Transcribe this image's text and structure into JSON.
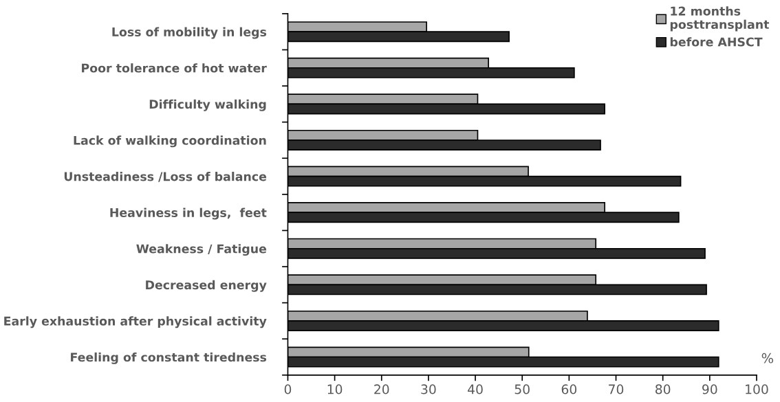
{
  "chart_data": {
    "type": "bar",
    "orientation": "horizontal",
    "categories": [
      "Loss of mobility in legs",
      "Poor tolerance of hot water",
      "Difficulty walking",
      "Lack of walking coordination",
      "Unsteadiness /Loss of balance",
      "Heaviness in legs,  feet",
      "Weakness / Fatigue",
      "Decreased energy",
      "Early exhaustion after physical activity",
      "Feeling of constant tiredness"
    ],
    "series": [
      {
        "name": "12 months\nposttransplant",
        "color": "#a6a6a6",
        "values": [
          29.6,
          42.8,
          40.5,
          40.5,
          51.3,
          67.6,
          65.7,
          65.7,
          63.9,
          51.4
        ]
      },
      {
        "name": "before AHSCT",
        "color": "#2b2b2b",
        "values": [
          47.2,
          61.1,
          67.6,
          66.7,
          83.8,
          83.4,
          89.0,
          89.3,
          91.9,
          91.9
        ]
      }
    ],
    "xlim": [
      0,
      100
    ],
    "xticks": [
      0,
      10,
      20,
      30,
      40,
      50,
      60,
      70,
      80,
      90,
      100
    ],
    "annotations": [
      "%"
    ],
    "legend": "top right",
    "grid": false
  }
}
